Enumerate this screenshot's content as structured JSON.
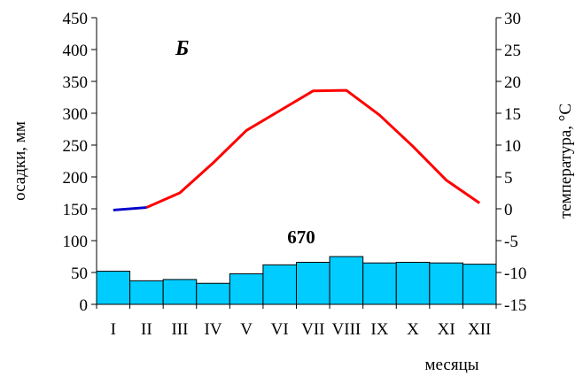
{
  "chart_data": {
    "type": "bar",
    "label": "Б",
    "total_label": "670",
    "categories": [
      "I",
      "II",
      "III",
      "IV",
      "V",
      "VI",
      "VII",
      "VIII",
      "IX",
      "X",
      "XI",
      "XII"
    ],
    "precipitation": [
      52,
      37,
      39,
      33,
      48,
      62,
      66,
      75,
      65,
      66,
      65,
      63
    ],
    "temperature": [
      -0.2,
      0.2,
      2.5,
      7.2,
      12.3,
      15.4,
      18.5,
      18.6,
      14.7,
      9.8,
      4.5,
      0.9
    ],
    "temperature_negative_segment_months": [
      0,
      1
    ],
    "ylabel_left": "осадки, мм",
    "ylabel_right": "температура, °С",
    "xlabel": "месяцы",
    "ylim_left": [
      0,
      450
    ],
    "ylim_right": [
      -15,
      30
    ],
    "yticks_left": [
      "0",
      "50",
      "100",
      "150",
      "200",
      "250",
      "300",
      "350",
      "400",
      "450"
    ],
    "yticks_right": [
      "-15",
      "-10",
      "-5",
      "0",
      "5",
      "10",
      "15",
      "20",
      "25",
      "30"
    ],
    "grid": false,
    "colors": {
      "bars": "#00CCFF",
      "bar_stroke": "#000000",
      "temperature_line": "#FF0000",
      "temperature_negative": "#0000CC"
    }
  }
}
